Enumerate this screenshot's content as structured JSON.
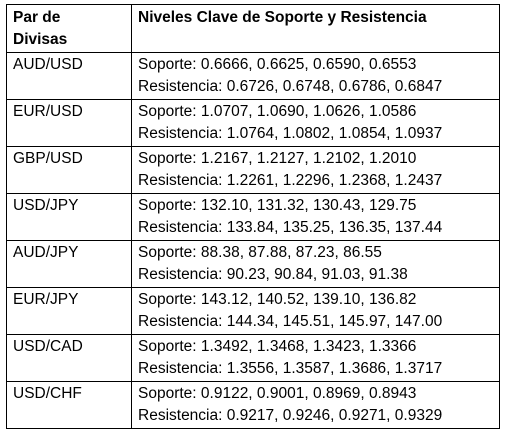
{
  "table": {
    "headers": {
      "pair_line1": "Par de",
      "pair_line2": "Divisas",
      "levels": "Niveles Clave de Soporte y Resistencia"
    },
    "rows": [
      {
        "pair": "AUD/USD",
        "support": "Soporte: 0.6666, 0.6625, 0.6590, 0.6553",
        "resistance": "Resistencia: 0.6726, 0.6748, 0.6786, 0.6847"
      },
      {
        "pair": "EUR/USD",
        "support": "Soporte: 1.0707, 1.0690, 1.0626, 1.0586",
        "resistance": "Resistencia: 1.0764, 1.0802, 1.0854, 1.0937"
      },
      {
        "pair": "GBP/USD",
        "support": "Soporte: 1.2167, 1.2127, 1.2102, 1.2010",
        "resistance": "Resistencia: 1.2261, 1.2296, 1.2368, 1.2437"
      },
      {
        "pair": "USD/JPY",
        "support": "Soporte: 132.10, 131.32, 130.43, 129.75",
        "resistance": "Resistencia: 133.84, 135.25, 136.35, 137.44"
      },
      {
        "pair": "AUD/JPY",
        "support": "Soporte: 88.38, 87.88, 87.23, 86.55",
        "resistance": "Resistencia: 90.23, 90.84, 91.03, 91.38"
      },
      {
        "pair": "EUR/JPY",
        "support": "Soporte: 143.12, 140.52, 139.10, 136.82",
        "resistance": "Resistencia: 144.34, 145.51, 145.97, 147.00"
      },
      {
        "pair": "USD/CAD",
        "support": "Soporte: 1.3492, 1.3468, 1.3423, 1.3366",
        "resistance": "Resistencia: 1.3556, 1.3587, 1.3686, 1.3717"
      },
      {
        "pair": "USD/CHF",
        "support": "Soporte: 0.9122, 0.9001, 0.8969, 0.8943",
        "resistance": "Resistencia: 0.9217, 0.9246, 0.9271, 0.9329"
      }
    ]
  }
}
